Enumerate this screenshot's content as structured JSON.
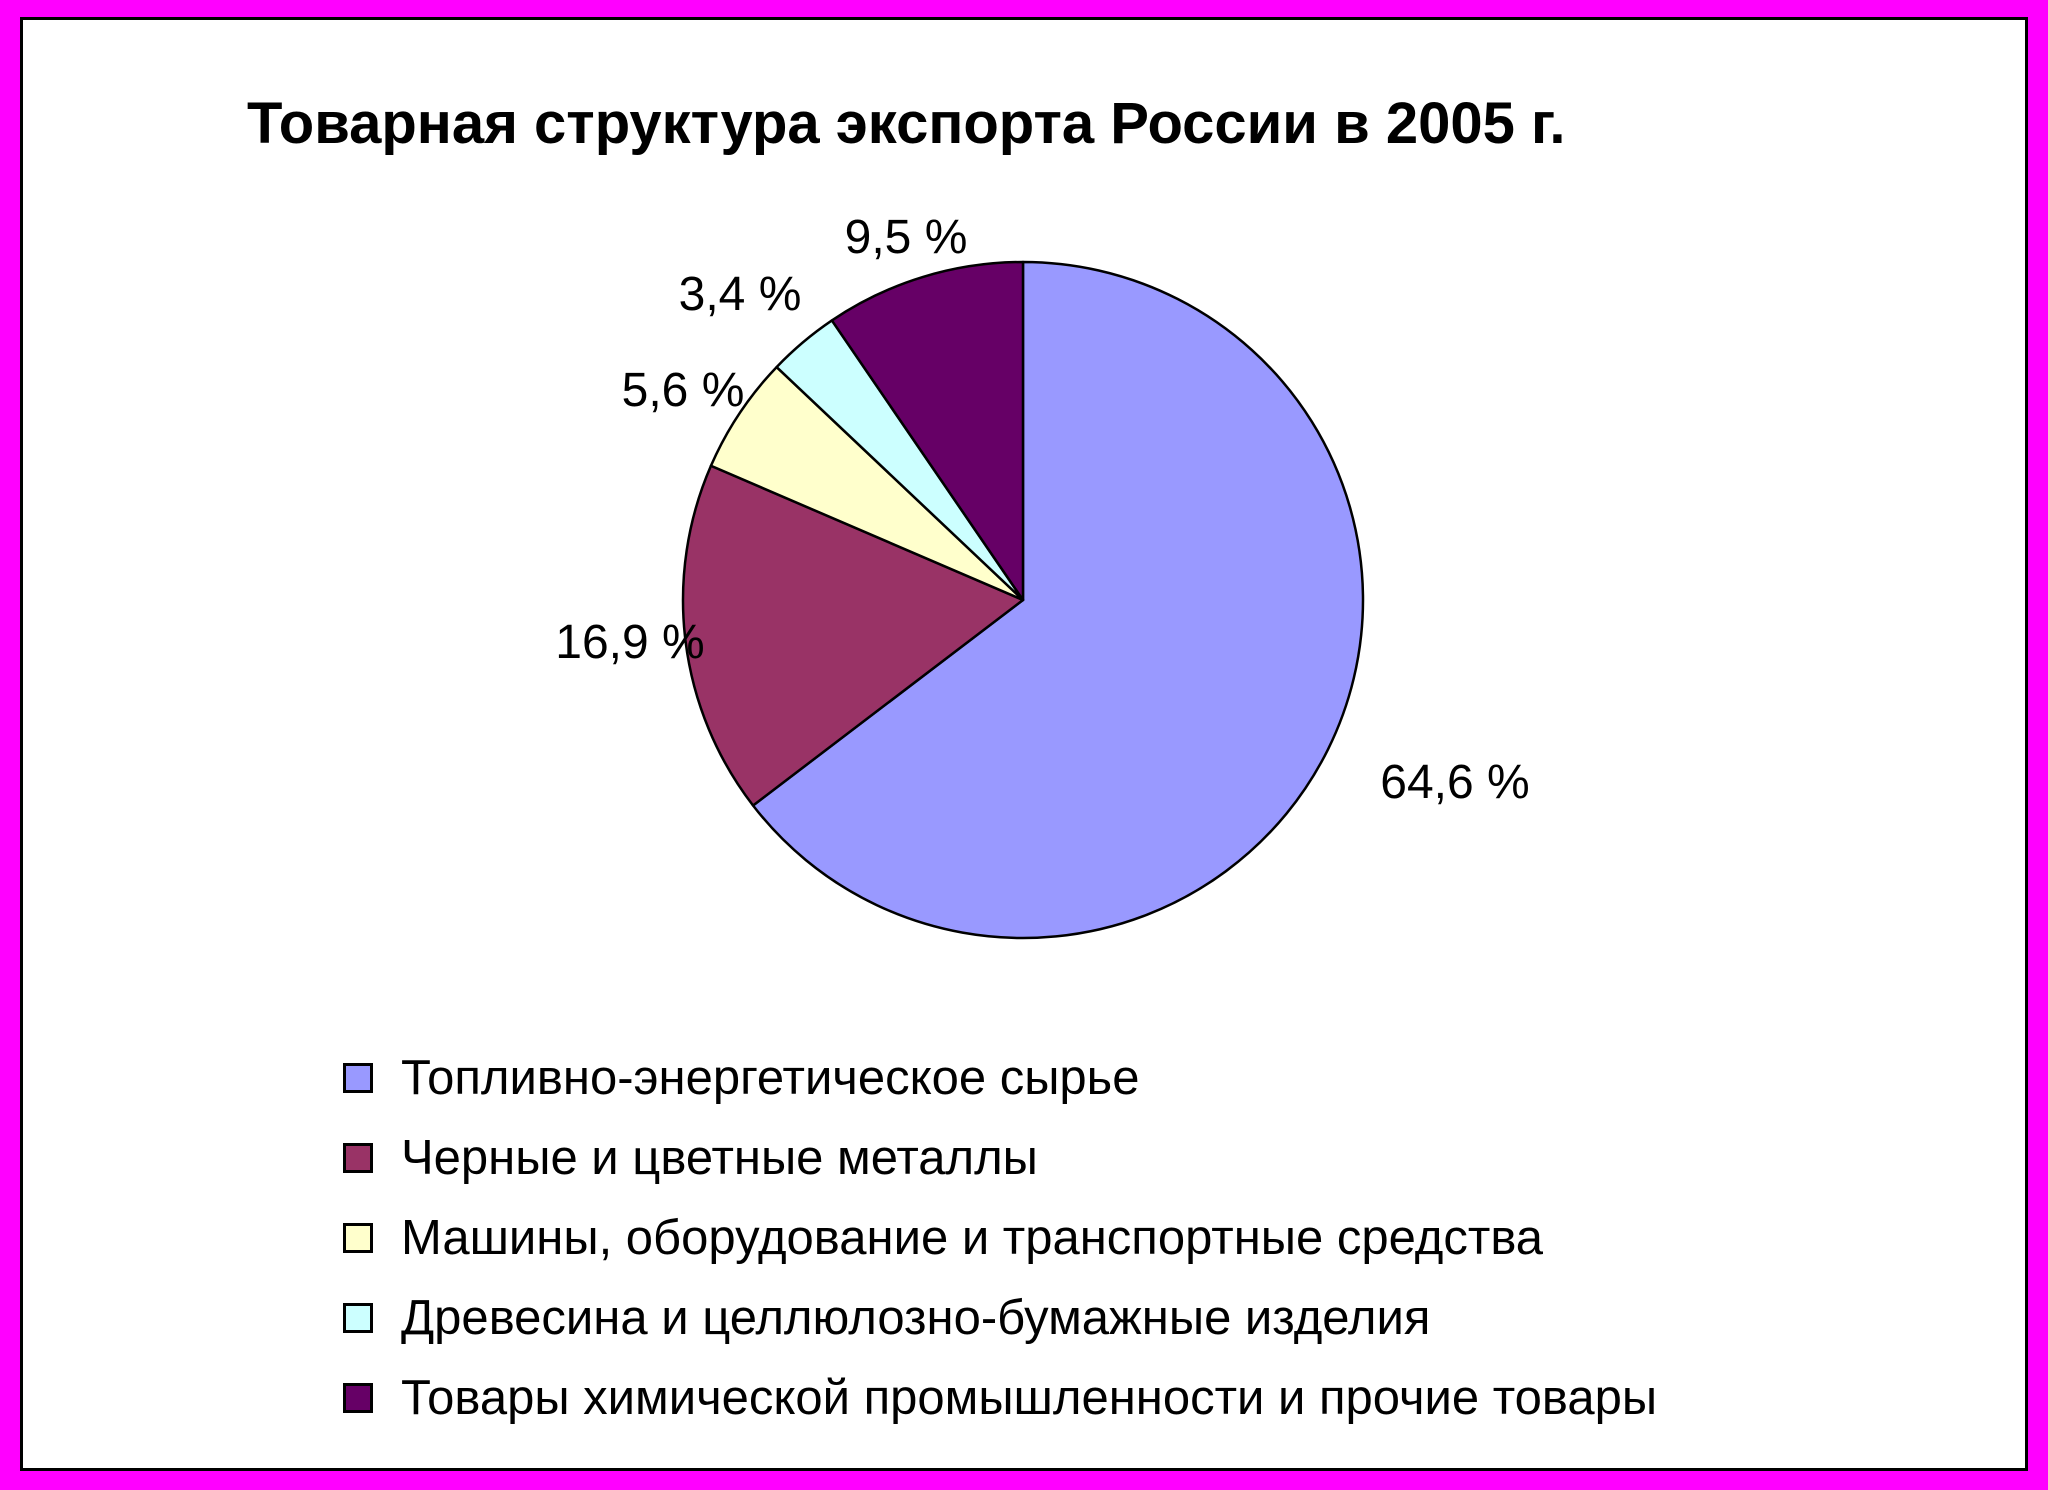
{
  "chart_data": {
    "type": "pie",
    "title": "Товарная структура экспорта России в 2005 г.",
    "categories": [
      "Топливно-энергетическое сырье",
      "Черные и цветные металлы",
      "Машины, оборудование и транспортные средства",
      "Древесина и целлюлозно-бумажные изделия",
      "Товары химической промышленности и прочие товары"
    ],
    "values": [
      64.6,
      16.9,
      5.6,
      3.4,
      9.5
    ],
    "data_labels": [
      "64,6 %",
      "16,9 %",
      "5,6 %",
      "3,4 %",
      "9,5 %"
    ],
    "colors": [
      "#9999ff",
      "#993366",
      "#ffffcc",
      "#ccffff",
      "#660066"
    ],
    "legend_position": "bottom",
    "start_angle_deg": 0,
    "direction": "clockwise"
  }
}
